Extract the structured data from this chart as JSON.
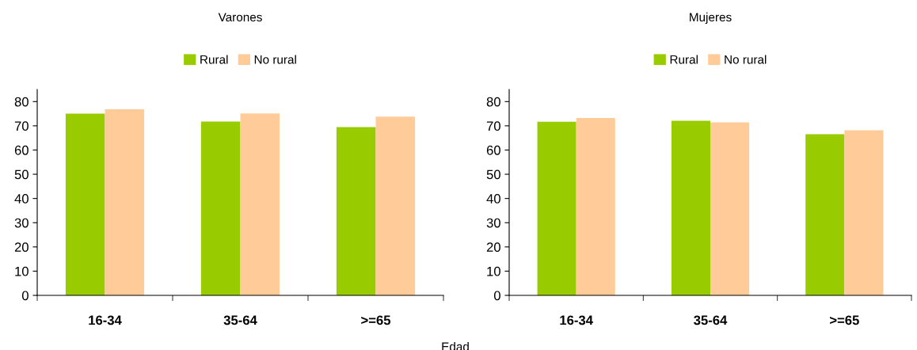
{
  "chart_data": [
    {
      "type": "bar",
      "title": "Varones",
      "xlabel": "Edad",
      "categories": [
        "16-34",
        "35-64",
        ">=65"
      ],
      "series": [
        {
          "name": "Rural",
          "color": "#99cc00",
          "values": [
            75.0,
            71.8,
            69.5
          ]
        },
        {
          "name": "No rural",
          "color": "#ffcc99",
          "values": [
            76.8,
            75.1,
            73.8
          ]
        }
      ],
      "ylim": [
        0,
        85
      ],
      "yticks": [
        0,
        10,
        20,
        30,
        40,
        50,
        60,
        70,
        80
      ],
      "grid": false,
      "legend": "top"
    },
    {
      "type": "bar",
      "title": "Mujeres",
      "categories": [
        "16-34",
        "35-64",
        ">=65"
      ],
      "series": [
        {
          "name": "Rural",
          "color": "#99cc00",
          "values": [
            71.7,
            72.1,
            66.5
          ]
        },
        {
          "name": "No rural",
          "color": "#ffcc99",
          "values": [
            73.2,
            71.4,
            68.2
          ]
        }
      ],
      "ylim": [
        0,
        85
      ],
      "yticks": [
        0,
        10,
        20,
        30,
        40,
        50,
        60,
        70,
        80
      ],
      "grid": false,
      "legend": "top"
    }
  ]
}
